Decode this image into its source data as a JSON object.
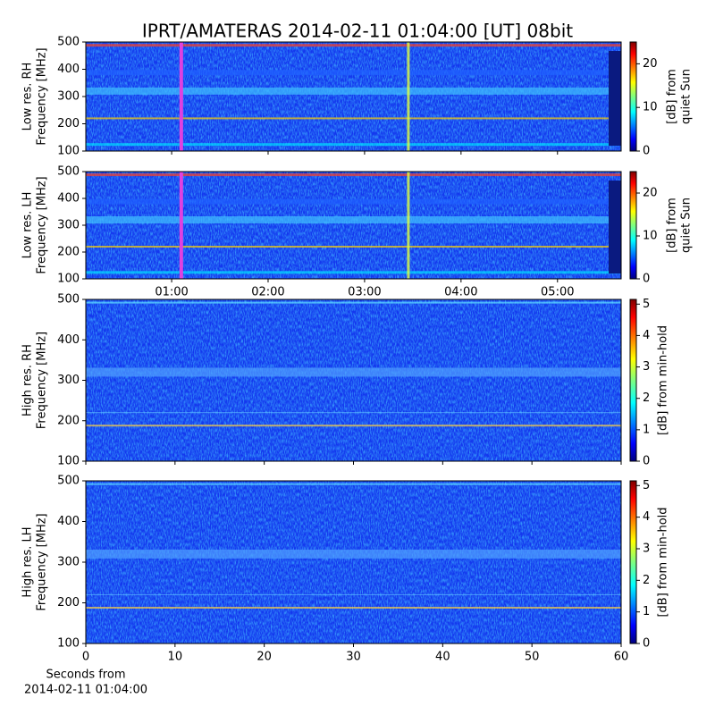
{
  "title": "IPRT/AMATERAS 2014-02-11 01:04:00 [UT]   08bit",
  "chart_data": [
    {
      "type": "heatmap",
      "ylabel": [
        "Low res. RH",
        "Frequency [MHz]"
      ],
      "ylim": [
        100,
        500
      ],
      "yticks": [
        100,
        200,
        300,
        400,
        500
      ],
      "xlim": [
        0.11,
        5.66
      ],
      "xticks": [
        1,
        2,
        3,
        4,
        5
      ],
      "x_tick_labels": false,
      "colorbar": {
        "label": [
          "[dB] from",
          "quiet Sun"
        ],
        "lim": [
          0,
          25
        ],
        "ticks": [
          0,
          10,
          20
        ]
      }
    },
    {
      "type": "heatmap",
      "ylabel": [
        "Low res. LH",
        "Frequency [MHz]"
      ],
      "ylim": [
        100,
        500
      ],
      "yticks": [
        100,
        200,
        300,
        400,
        500
      ],
      "xlim": [
        0.11,
        5.66
      ],
      "xticks": [
        {
          "value": 1,
          "label": "01:00"
        },
        {
          "value": 2,
          "label": "02:00"
        },
        {
          "value": 3,
          "label": "03:00"
        },
        {
          "value": 4,
          "label": "04:00"
        },
        {
          "value": 5,
          "label": "05:00"
        }
      ],
      "x_tick_labels": true,
      "colorbar": {
        "label": [
          "[dB] from",
          "quiet Sun"
        ],
        "lim": [
          0,
          25
        ],
        "ticks": [
          0,
          10,
          20
        ]
      }
    },
    {
      "type": "heatmap",
      "ylabel": [
        "High res. RH",
        "Frequency [MHz]"
      ],
      "ylim": [
        100,
        500
      ],
      "yticks": [
        100,
        200,
        300,
        400,
        500
      ],
      "xlim": [
        0,
        60
      ],
      "xticks": [
        0,
        10,
        20,
        30,
        40,
        50,
        60
      ],
      "x_tick_labels": false,
      "colorbar": {
        "label": [
          "[dB] from min-hold"
        ],
        "lim": [
          0,
          5.15
        ],
        "ticks": [
          0,
          1,
          2,
          3,
          4,
          5
        ]
      }
    },
    {
      "type": "heatmap",
      "ylabel": [
        "High res. LH",
        "Frequency [MHz]"
      ],
      "ylim": [
        100,
        500
      ],
      "yticks": [
        100,
        200,
        300,
        400,
        500
      ],
      "xlim": [
        0,
        60
      ],
      "xticks": [
        0,
        10,
        20,
        30,
        40,
        50,
        60
      ],
      "x_tick_labels": true,
      "xlabel": [
        "Seconds from",
        "2014-02-11 01:04:00"
      ],
      "colorbar": {
        "label": [
          "[dB] from min-hold"
        ],
        "lim": [
          0,
          5.15
        ],
        "ticks": [
          0,
          1,
          2,
          3,
          4,
          5
        ]
      }
    }
  ]
}
